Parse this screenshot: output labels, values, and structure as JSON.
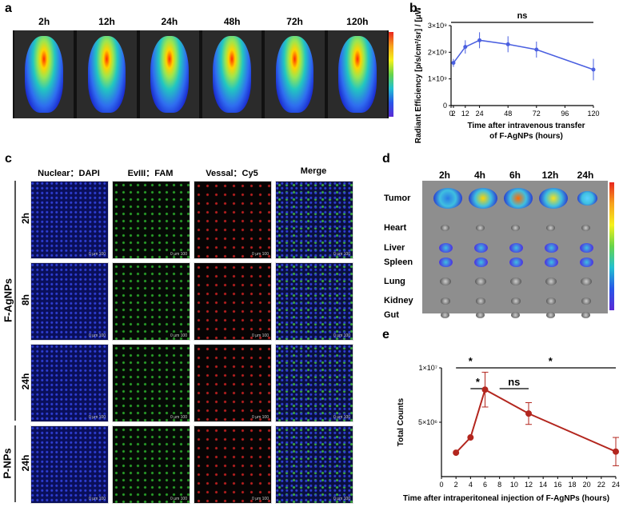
{
  "panel_letters": {
    "a": "a",
    "b": "b",
    "c": "c",
    "d": "d",
    "e": "e"
  },
  "panel_a": {
    "timepoints": [
      "2h",
      "12h",
      "24h",
      "48h",
      "72h",
      "120h"
    ]
  },
  "panel_c": {
    "columns": [
      "Nuclear：DAPI",
      "EvIII：FAM",
      "Vessal：Cy5",
      "Merge"
    ],
    "rows": [
      "2h",
      "8h",
      "24h",
      "24h"
    ],
    "groups": [
      "F-AgNPs",
      "P-NPs"
    ],
    "scale_text": "0 μm 100"
  },
  "panel_d": {
    "timepoints": [
      "2h",
      "4h",
      "6h",
      "12h",
      "24h"
    ],
    "organs": [
      "Tumor",
      "Heart",
      "Liver",
      "Spleen",
      "Lung",
      "Kidney",
      "Gut"
    ]
  },
  "chart_data": [
    {
      "type": "line",
      "panel": "b",
      "x": [
        2,
        12,
        24,
        48,
        72,
        120
      ],
      "series": [
        {
          "values": [
            1600000000.0,
            2200000000.0,
            2450000000.0,
            2300000000.0,
            2100000000.0,
            1350000000.0
          ],
          "errors": [
            150000000.0,
            250000000.0,
            300000000.0,
            300000000.0,
            300000000.0,
            400000000.0
          ]
        }
      ],
      "xlabel": "Time after intravenous transfer of F-AgNPs (hours)",
      "ylabel": "Radiant Efficiency [p/s/cm²/sr] / [μW/cm²]",
      "xticks": [
        "0",
        "2",
        "12",
        "24",
        "48",
        "72",
        "96",
        "120"
      ],
      "yticks": [
        "0",
        "1×10⁹",
        "2×10⁹",
        "3×10⁹"
      ],
      "ylim": [
        0,
        3000000000.0
      ],
      "annotations": [
        "ns"
      ],
      "color": "#4a5fe0"
    },
    {
      "type": "line",
      "panel": "e",
      "x": [
        2,
        4,
        6,
        12,
        24
      ],
      "series": [
        {
          "values": [
            2200000.0,
            3600000.0,
            8000000.0,
            5800000.0,
            2300000.0
          ],
          "errors": [
            0,
            0,
            1600000.0,
            1000000.0,
            1300000.0
          ]
        }
      ],
      "xlabel": "Time after intraperitoneal injection of F-AgNPs (hours)",
      "ylabel": "Total Counts",
      "xticks": [
        "0",
        "2",
        "4",
        "6",
        "8",
        "10",
        "12",
        "14",
        "16",
        "18",
        "20",
        "22",
        "24"
      ],
      "yticks": [
        "5×10⁶",
        "1×10⁷"
      ],
      "ylim": [
        0,
        10000000.0
      ],
      "annotations": [
        "*",
        "*",
        "ns",
        "*"
      ],
      "color": "#b3261e"
    }
  ]
}
